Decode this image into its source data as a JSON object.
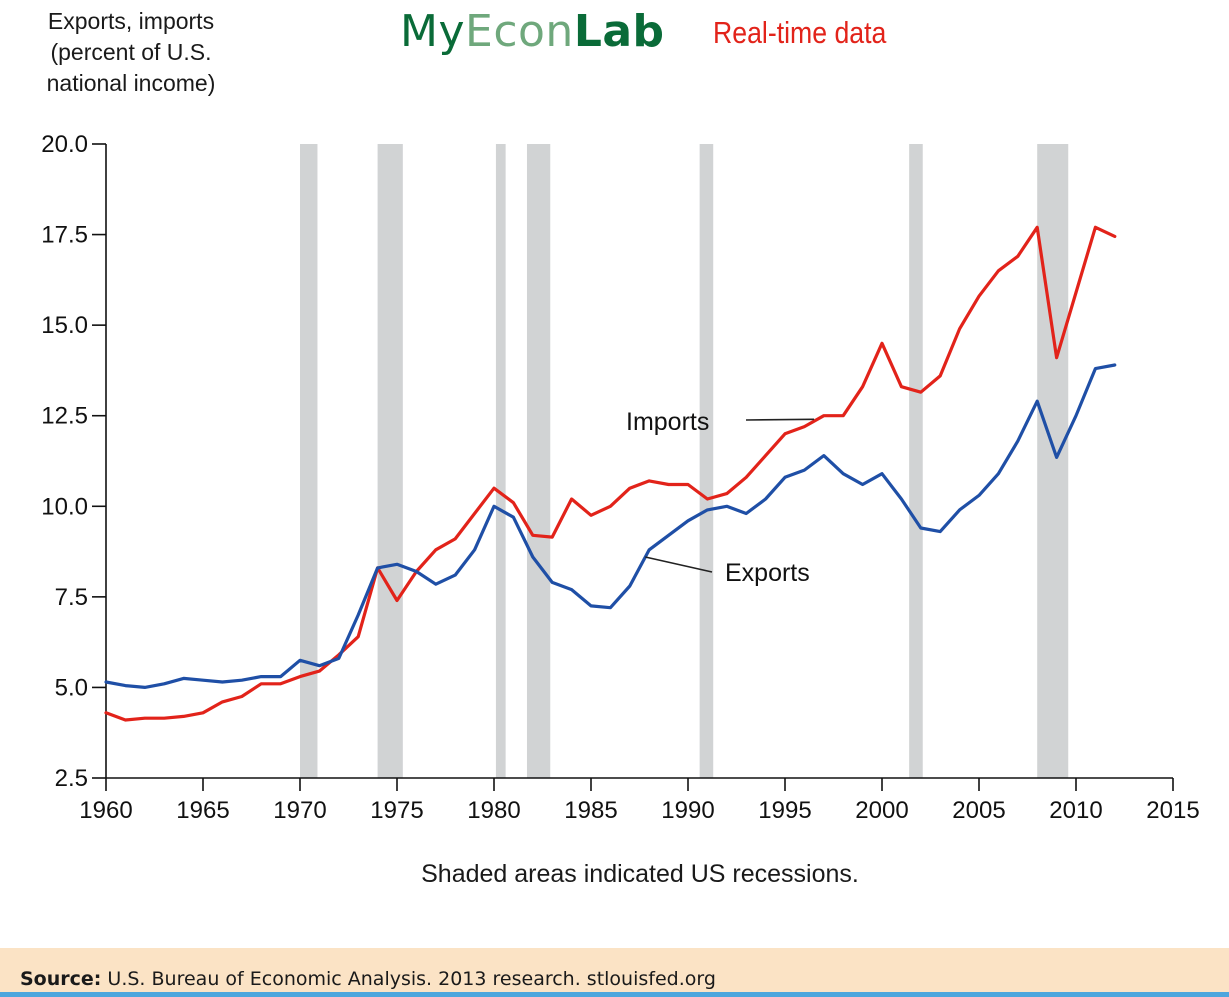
{
  "header": {
    "brand_my": "My",
    "brand_econ": "Econ",
    "brand_lab": "Lab",
    "realtime": "Real-time data"
  },
  "chart_data": {
    "type": "line",
    "title": "",
    "ylabel_lines": [
      "Exports, imports",
      "(percent of U.S.",
      "national income)"
    ],
    "xlabel": "",
    "xlim": [
      1960,
      2015
    ],
    "ylim": [
      2.5,
      20.0
    ],
    "xticks": [
      1960,
      1965,
      1970,
      1975,
      1980,
      1985,
      1990,
      1995,
      2000,
      2005,
      2010,
      2015
    ],
    "yticks": [
      "2.5",
      "5.0",
      "7.5",
      "10.0",
      "12.5",
      "15.0",
      "17.5",
      "20.0"
    ],
    "grid": false,
    "recessions": [
      [
        1970.0,
        1970.9
      ],
      [
        1974.0,
        1975.3
      ],
      [
        1980.1,
        1980.6
      ],
      [
        1981.7,
        1982.9
      ],
      [
        1990.6,
        1991.3
      ],
      [
        2001.4,
        2002.1
      ],
      [
        2008.0,
        2009.6
      ]
    ],
    "series": [
      {
        "name": "Imports",
        "color": "#e2231a",
        "points": [
          [
            1960,
            4.3
          ],
          [
            1961,
            4.1
          ],
          [
            1962,
            4.15
          ],
          [
            1963,
            4.15
          ],
          [
            1964,
            4.2
          ],
          [
            1965,
            4.3
          ],
          [
            1966,
            4.6
          ],
          [
            1967,
            4.75
          ],
          [
            1968,
            5.1
          ],
          [
            1969,
            5.1
          ],
          [
            1970,
            5.3
          ],
          [
            1971,
            5.45
          ],
          [
            1972,
            5.9
          ],
          [
            1973,
            6.4
          ],
          [
            1974,
            8.3
          ],
          [
            1975,
            7.4
          ],
          [
            1976,
            8.2
          ],
          [
            1977,
            8.8
          ],
          [
            1978,
            9.1
          ],
          [
            1979,
            9.8
          ],
          [
            1980,
            10.5
          ],
          [
            1981,
            10.1
          ],
          [
            1982,
            9.2
          ],
          [
            1983,
            9.15
          ],
          [
            1984,
            10.2
          ],
          [
            1985,
            9.75
          ],
          [
            1986,
            10.0
          ],
          [
            1987,
            10.5
          ],
          [
            1988,
            10.7
          ],
          [
            1989,
            10.6
          ],
          [
            1990,
            10.6
          ],
          [
            1991,
            10.2
          ],
          [
            1992,
            10.35
          ],
          [
            1993,
            10.8
          ],
          [
            1994,
            11.4
          ],
          [
            1995,
            12.0
          ],
          [
            1996,
            12.2
          ],
          [
            1997,
            12.5
          ],
          [
            1998,
            12.5
          ],
          [
            1999,
            13.3
          ],
          [
            2000,
            14.5
          ],
          [
            2001,
            13.3
          ],
          [
            2002,
            13.15
          ],
          [
            2003,
            13.6
          ],
          [
            2004,
            14.9
          ],
          [
            2005,
            15.8
          ],
          [
            2006,
            16.5
          ],
          [
            2007,
            16.9
          ],
          [
            2008,
            17.7
          ],
          [
            2009,
            14.1
          ],
          [
            2010,
            15.9
          ],
          [
            2011,
            17.7
          ],
          [
            2012,
            17.45
          ]
        ]
      },
      {
        "name": "Exports",
        "color": "#1f4fa6",
        "points": [
          [
            1960,
            5.15
          ],
          [
            1961,
            5.05
          ],
          [
            1962,
            5.0
          ],
          [
            1963,
            5.1
          ],
          [
            1964,
            5.25
          ],
          [
            1965,
            5.2
          ],
          [
            1966,
            5.15
          ],
          [
            1967,
            5.2
          ],
          [
            1968,
            5.3
          ],
          [
            1969,
            5.3
          ],
          [
            1970,
            5.75
          ],
          [
            1971,
            5.6
          ],
          [
            1972,
            5.8
          ],
          [
            1973,
            7.0
          ],
          [
            1974,
            8.3
          ],
          [
            1975,
            8.4
          ],
          [
            1976,
            8.2
          ],
          [
            1977,
            7.85
          ],
          [
            1978,
            8.1
          ],
          [
            1979,
            8.8
          ],
          [
            1980,
            10.0
          ],
          [
            1981,
            9.7
          ],
          [
            1982,
            8.6
          ],
          [
            1983,
            7.9
          ],
          [
            1984,
            7.7
          ],
          [
            1985,
            7.25
          ],
          [
            1986,
            7.2
          ],
          [
            1987,
            7.8
          ],
          [
            1988,
            8.8
          ],
          [
            1989,
            9.2
          ],
          [
            1990,
            9.6
          ],
          [
            1991,
            9.9
          ],
          [
            1992,
            10.0
          ],
          [
            1993,
            9.8
          ],
          [
            1994,
            10.2
          ],
          [
            1995,
            10.8
          ],
          [
            1996,
            11.0
          ],
          [
            1997,
            11.4
          ],
          [
            1998,
            10.9
          ],
          [
            1999,
            10.6
          ],
          [
            2000,
            10.9
          ],
          [
            2001,
            10.2
          ],
          [
            2002,
            9.4
          ],
          [
            2003,
            9.3
          ],
          [
            2004,
            9.9
          ],
          [
            2005,
            10.3
          ],
          [
            2006,
            10.9
          ],
          [
            2007,
            11.8
          ],
          [
            2008,
            12.9
          ],
          [
            2009,
            11.35
          ],
          [
            2010,
            12.5
          ],
          [
            2011,
            13.8
          ],
          [
            2012,
            13.9
          ]
        ]
      }
    ],
    "annotations": [
      {
        "text": "Imports",
        "series": "Imports",
        "leader_to": [
          1996.5,
          12.4
        ]
      },
      {
        "text": "Exports",
        "series": "Exports",
        "leader_to": [
          1987.8,
          8.6
        ]
      }
    ],
    "note": "Shaded areas indicated US recessions."
  },
  "source": {
    "label": "Source:",
    "text": " U.S. Bureau of Economic Analysis. 2013 research. stlouisfed.org"
  }
}
